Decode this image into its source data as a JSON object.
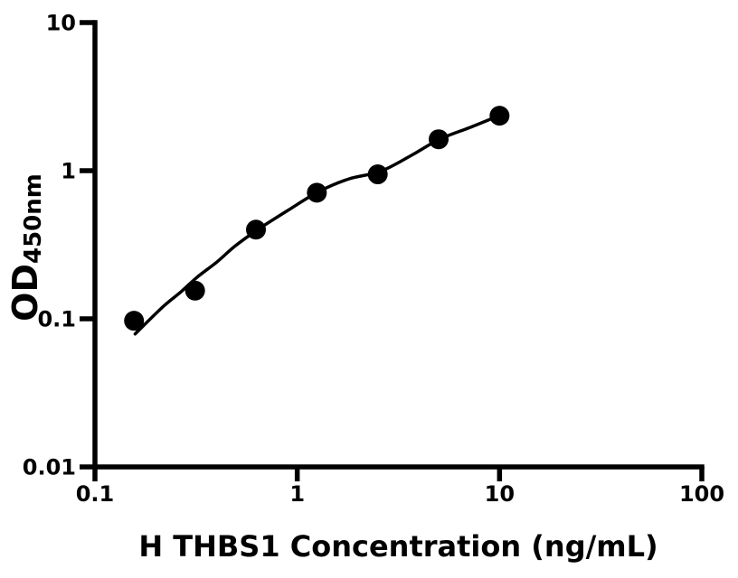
{
  "chart_data": {
    "type": "scatter",
    "title": "",
    "xlabel": "H THBS1 Concentration (ng/mL)",
    "ylabel_main": "OD",
    "ylabel_subscript": "450nm",
    "x_scale": "log",
    "y_scale": "log",
    "xlim": [
      0.1,
      100
    ],
    "ylim": [
      0.01,
      10
    ],
    "grid": false,
    "legend": false,
    "x_ticks": {
      "values": [
        0.1,
        1,
        10,
        100
      ],
      "labels": [
        "0.1",
        "1",
        "10",
        "100"
      ]
    },
    "y_ticks": {
      "values": [
        10,
        1,
        0.1,
        0.01
      ],
      "labels": [
        "10",
        "1",
        "0.1",
        "0.01"
      ]
    },
    "marker": {
      "shape": "filled-circle",
      "radius_px": 11
    },
    "series": [
      {
        "name": "standard-curve-points",
        "x": [
          0.156,
          0.3125,
          0.625,
          1.25,
          2.5,
          5,
          10
        ],
        "y": [
          0.097,
          0.155,
          0.4,
          0.71,
          0.945,
          1.63,
          2.35
        ]
      }
    ],
    "fit_curve": {
      "name": "four-parameter-logistic-fit",
      "x": [
        0.158,
        0.216,
        0.266,
        0.32,
        0.401,
        0.493,
        0.638,
        0.9,
        1.27,
        1.8,
        2.58,
        3.67,
        5.05,
        7.15,
        10.0
      ],
      "y": [
        0.079,
        0.12,
        0.152,
        0.191,
        0.242,
        0.31,
        0.4,
        0.54,
        0.72,
        0.88,
        0.99,
        1.27,
        1.63,
        1.96,
        2.36
      ]
    },
    "colors": {
      "axis": "#000000",
      "curve": "#000000",
      "marker": "#000000",
      "background": "#ffffff"
    }
  }
}
